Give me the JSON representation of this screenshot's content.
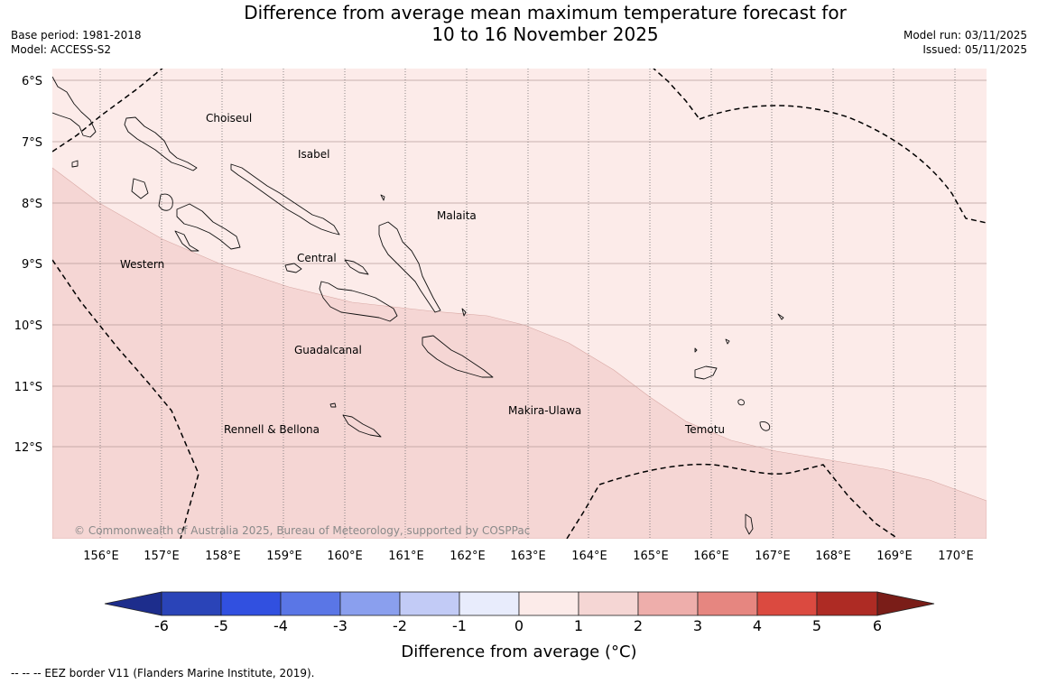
{
  "header": {
    "title_line1": "Difference from average mean maximum temperature forecast for",
    "title_line2": "10 to 16 November 2025",
    "base_period": "Base period: 1981-2018",
    "model": "Model: ACCESS-S2",
    "model_run": "Model run: 03/11/2025",
    "issued": "Issued: 05/11/2025"
  },
  "map": {
    "latitude_labels": [
      "6°S",
      "7°S",
      "8°S",
      "9°S",
      "10°S",
      "11°S",
      "12°S"
    ],
    "longitude_labels": [
      "156°E",
      "157°E",
      "158°E",
      "159°E",
      "160°E",
      "161°E",
      "162°E",
      "163°E",
      "164°E",
      "165°E",
      "166°E",
      "167°E",
      "168°E",
      "169°E",
      "170°E"
    ],
    "province_labels": [
      "Choiseul",
      "Isabel",
      "Malaita",
      "Western",
      "Central",
      "Guadalcanal",
      "Makira-Ulawa",
      "Temotu",
      "Rennell & Bellona"
    ],
    "credit": "© Commonwealth of Australia 2025, Bureau of Meteorology, supported by COSPPac",
    "fill_colors": {
      "range_0_to_1": "#fcebe9",
      "range_1_to_2": "#f5d6d4"
    }
  },
  "legend": {
    "ticks": [
      "-6",
      "-5",
      "-4",
      "-3",
      "-2",
      "-1",
      "0",
      "1",
      "2",
      "3",
      "4",
      "5",
      "6"
    ],
    "colors": [
      "#1d2d8c",
      "#2a44b8",
      "#3150e0",
      "#5a76e6",
      "#8a9fee",
      "#c2cbf6",
      "#e8ecfc",
      "#fcebe9",
      "#f5d6d4",
      "#eeaeab",
      "#e68680",
      "#db4a40",
      "#ae2b24",
      "#7a1d18"
    ],
    "label": "Difference from average (°C)"
  },
  "footer": {
    "eez_note": "--  --  -- EEZ border V11 (Flanders Marine Institute, 2019)."
  }
}
